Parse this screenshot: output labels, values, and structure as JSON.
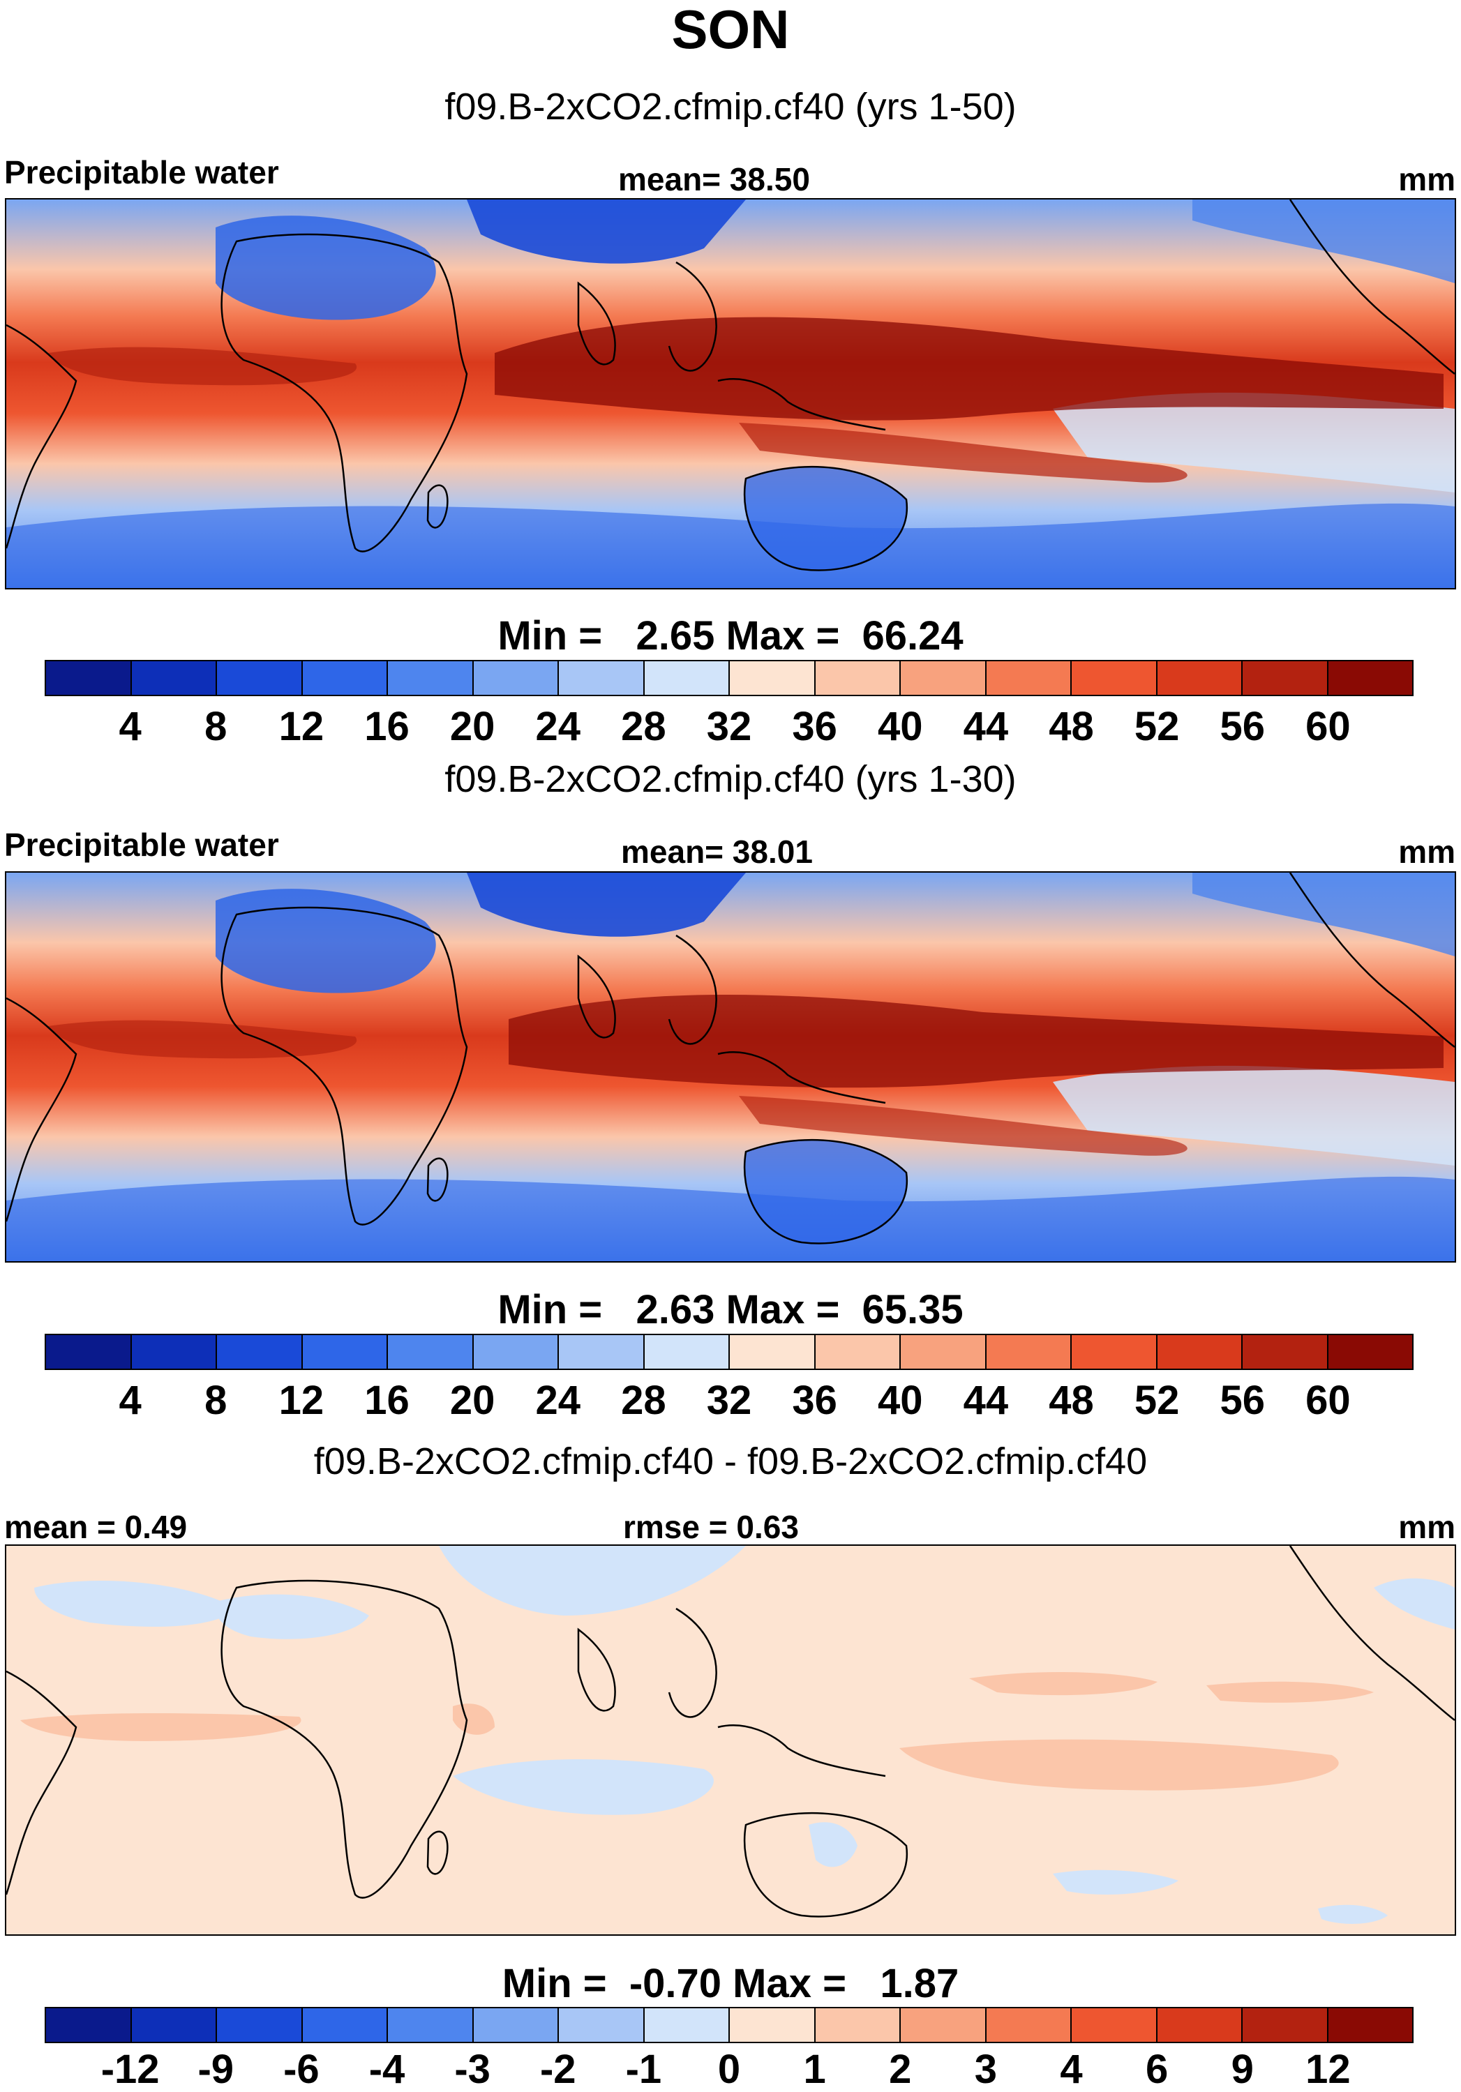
{
  "title": "SON",
  "panels": [
    {
      "id": "p1",
      "subtitle": "f09.B-2xCO2.cfmip.cf40 (yrs 1-50)",
      "left_label": "Precipitable water",
      "center_label": "mean=  38.50",
      "right_label": "mm",
      "minmax": "Min =   2.65 Max =  66.24",
      "colorbar": {
        "colors": [
          "#0a1a8c",
          "#0d2fb8",
          "#1a4ad8",
          "#2e66e8",
          "#4e85ee",
          "#7aa6f2",
          "#a8c6f6",
          "#d2e4fa",
          "#fde4d2",
          "#fbc6aa",
          "#f8a27e",
          "#f47a52",
          "#ee5630",
          "#d93a1c",
          "#b32210",
          "#8a0a04"
        ],
        "ticks": [
          "4",
          "8",
          "12",
          "16",
          "20",
          "24",
          "28",
          "32",
          "36",
          "40",
          "44",
          "48",
          "52",
          "56",
          "60"
        ]
      }
    },
    {
      "id": "p2",
      "subtitle": "f09.B-2xCO2.cfmip.cf40 (yrs 1-30)",
      "left_label": "Precipitable water",
      "center_label": "mean=  38.01",
      "right_label": "mm",
      "minmax": "Min =   2.63 Max =  65.35",
      "colorbar": {
        "colors": [
          "#0a1a8c",
          "#0d2fb8",
          "#1a4ad8",
          "#2e66e8",
          "#4e85ee",
          "#7aa6f2",
          "#a8c6f6",
          "#d2e4fa",
          "#fde4d2",
          "#fbc6aa",
          "#f8a27e",
          "#f47a52",
          "#ee5630",
          "#d93a1c",
          "#b32210",
          "#8a0a04"
        ],
        "ticks": [
          "4",
          "8",
          "12",
          "16",
          "20",
          "24",
          "28",
          "32",
          "36",
          "40",
          "44",
          "48",
          "52",
          "56",
          "60"
        ]
      }
    },
    {
      "id": "p3",
      "subtitle": "f09.B-2xCO2.cfmip.cf40 - f09.B-2xCO2.cfmip.cf40",
      "left_label": "mean =   0.49",
      "center_label": "rmse =   0.63",
      "right_label": "mm",
      "minmax": "Min =  -0.70 Max =   1.87",
      "colorbar": {
        "colors": [
          "#0a1a8c",
          "#0d2fb8",
          "#1a4ad8",
          "#2e66e8",
          "#4e85ee",
          "#7aa6f2",
          "#a8c6f6",
          "#d2e4fa",
          "#fde4d2",
          "#fbc6aa",
          "#f8a27e",
          "#f47a52",
          "#ee5630",
          "#d93a1c",
          "#b32210",
          "#8a0a04"
        ],
        "ticks": [
          "-12",
          "-9",
          "-6",
          "-4",
          "-3",
          "-2",
          "-1",
          "0",
          "1",
          "2",
          "3",
          "4",
          "6",
          "9",
          "12"
        ]
      }
    }
  ]
}
